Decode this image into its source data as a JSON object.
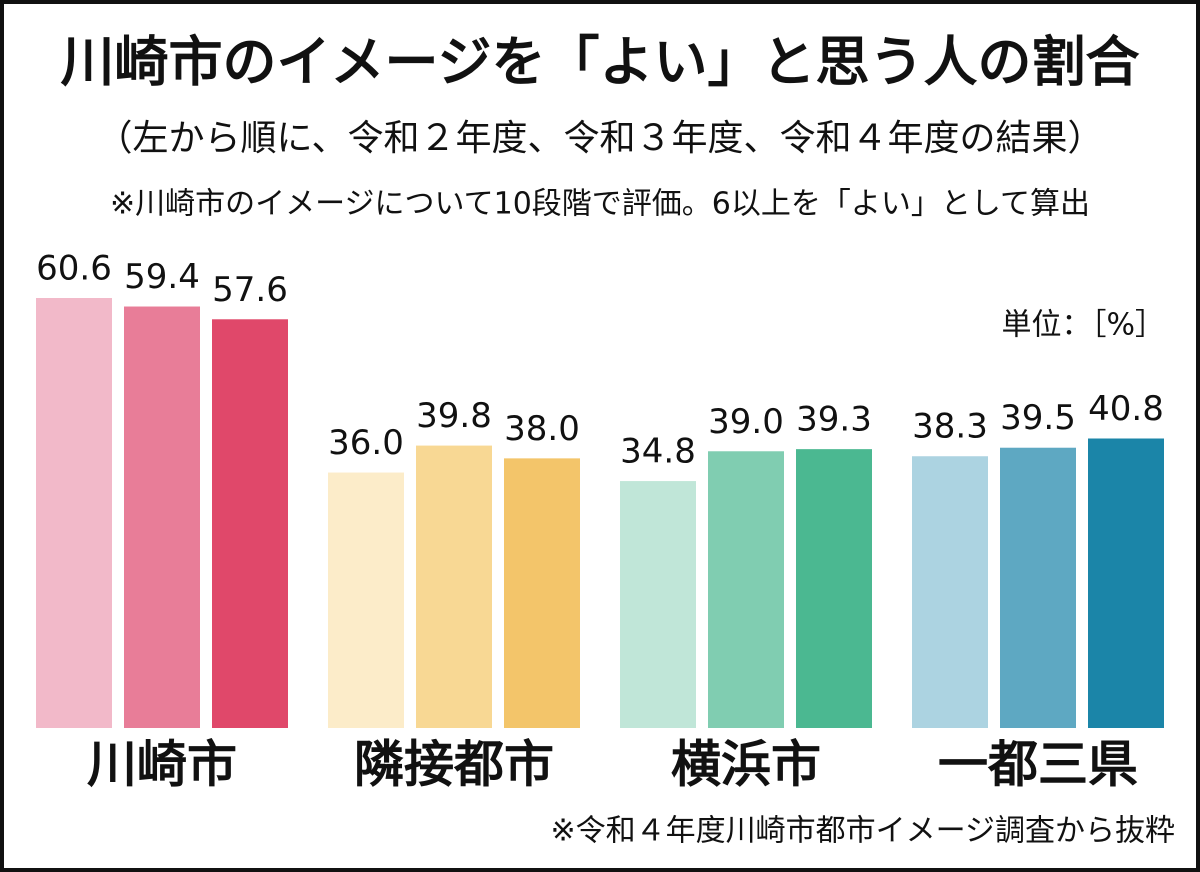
{
  "chart_data": {
    "type": "bar",
    "title": "川崎市のイメージを「よい」と思う人の割合",
    "subtitle": "（左から順に、令和２年度、令和３年度、令和４年度の結果）",
    "note": "※川崎市のイメージについて10段階で評価。6以上を「よい」として算出",
    "unit": "単位：［%］",
    "source": "※令和４年度川崎市都市イメージ調査から抜粋",
    "categories": [
      "川崎市",
      "隣接都市",
      "横浜市",
      "一都三県"
    ],
    "series": [
      {
        "colors": [
          "#f2b9c9",
          "#fcecc9",
          "#c0e6d8",
          "#acd3e1"
        ],
        "values": [
          60.6,
          36,
          34.8,
          38.3
        ],
        "value_labels": [
          "60.6",
          "36.0",
          "34.8",
          "38.3"
        ]
      },
      {
        "colors": [
          "#e87d98",
          "#f8d894",
          "#80cdb1",
          "#5ea8c2"
        ],
        "values": [
          59.4,
          39.8,
          39,
          39.5
        ],
        "value_labels": [
          "59.4",
          "39.8",
          "39.0",
          "39.5"
        ]
      },
      {
        "colors": [
          "#e0486a",
          "#f3c56a",
          "#4bb891",
          "#1b85a8"
        ],
        "values": [
          57.6,
          38,
          39.3,
          40.8
        ],
        "value_labels": [
          "57.6",
          "38.0",
          "39.3",
          "40.8"
        ]
      }
    ]
  }
}
